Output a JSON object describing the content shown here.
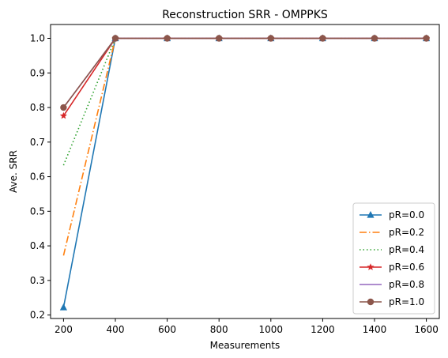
{
  "chart_data": {
    "type": "line",
    "title": "Reconstruction SRR - OMPPKS",
    "xlabel": "Measurements",
    "ylabel": "Ave. SRR",
    "x": [
      200,
      400,
      600,
      800,
      1000,
      1200,
      1400,
      1600
    ],
    "xticks": [
      "200",
      "400",
      "600",
      "800",
      "1000",
      "1200",
      "1400",
      "1600"
    ],
    "yticks": [
      "0.2",
      "0.3",
      "0.4",
      "0.5",
      "0.6",
      "0.7",
      "0.8",
      "0.9",
      "1.0"
    ],
    "xlim": [
      150,
      1650
    ],
    "ylim": [
      0.19,
      1.04
    ],
    "grid": false,
    "legend_position": "lower-right",
    "series": [
      {
        "name": "pR=0.0",
        "color": "#1f77b4",
        "dash": "solid",
        "marker": "triangle",
        "values": [
          0.222,
          1.0,
          1.0,
          1.0,
          1.0,
          1.0,
          1.0,
          1.0
        ]
      },
      {
        "name": "pR=0.2",
        "color": "#ff7f0e",
        "dash": "dashdot",
        "marker": "none",
        "values": [
          0.372,
          1.0,
          1.0,
          1.0,
          1.0,
          1.0,
          1.0,
          1.0
        ]
      },
      {
        "name": "pR=0.4",
        "color": "#2ca02c",
        "dash": "dotted",
        "marker": "none",
        "values": [
          0.633,
          1.0,
          1.0,
          1.0,
          1.0,
          1.0,
          1.0,
          1.0
        ]
      },
      {
        "name": "pR=0.6",
        "color": "#d62728",
        "dash": "solid",
        "marker": "star",
        "values": [
          0.776,
          1.0,
          1.0,
          1.0,
          1.0,
          1.0,
          1.0,
          1.0
        ]
      },
      {
        "name": "pR=0.8",
        "color": "#9467bd",
        "dash": "solid",
        "marker": "none",
        "values": [
          0.8,
          1.0,
          1.0,
          1.0,
          1.0,
          1.0,
          1.0,
          1.0
        ]
      },
      {
        "name": "pR=1.0",
        "color": "#8c564b",
        "dash": "solid",
        "marker": "circle",
        "values": [
          0.8,
          1.0,
          1.0,
          1.0,
          1.0,
          1.0,
          1.0,
          1.0
        ]
      }
    ]
  }
}
